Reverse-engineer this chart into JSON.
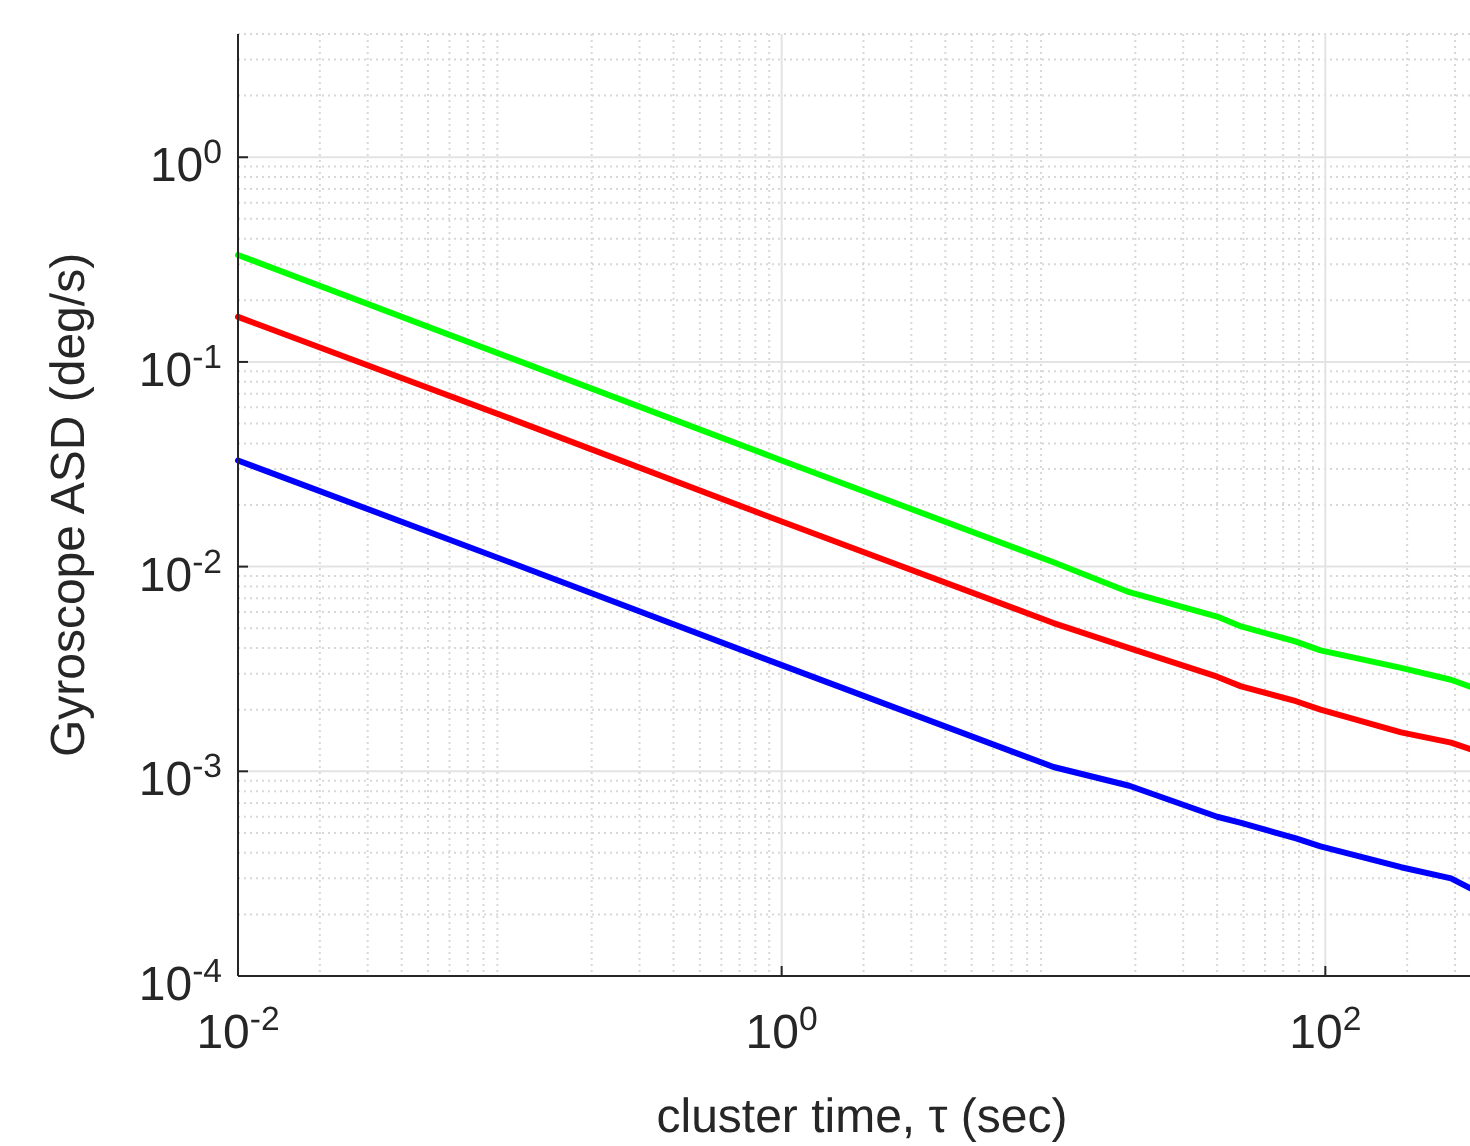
{
  "chart_data": {
    "type": "line",
    "xlabel": "cluster time, τ (sec)",
    "ylabel": "Gyroscope ASD (deg/s)",
    "log": "xy",
    "grid": true,
    "line_style": "solid",
    "marker": "none",
    "xlim": [
      0.01,
      390
    ],
    "xticks": [
      {
        "value": 0.01,
        "label": "10$^{-2}$"
      },
      {
        "value": 1,
        "label": "10$^{0}$"
      },
      {
        "value": 100,
        "label": "10$^{2}$"
      }
    ],
    "ylim": [
      0.0001,
      4
    ],
    "yticks": [
      {
        "value": 0.0001,
        "label": "10$^{-4}$"
      },
      {
        "value": 0.001,
        "label": "10$^{-3}$"
      },
      {
        "value": 0.01,
        "label": "10$^{-2}$"
      },
      {
        "value": 0.1,
        "label": "10$^{-1}$"
      },
      {
        "value": 1,
        "label": "10$^{0}$"
      }
    ],
    "x": [
      0.01,
      0.1,
      1,
      10,
      19,
      40,
      49,
      78,
      96,
      190,
      290,
      390
    ],
    "series": [
      {
        "color": "#00ff00",
        "values": [
          0.333,
          0.105,
          0.033,
          0.0105,
          0.0075,
          0.0057,
          0.0051,
          0.0043,
          0.0039,
          0.0032,
          0.0028,
          0.00243
        ]
      },
      {
        "color": "#ff0000",
        "values": [
          0.166,
          0.053,
          0.0166,
          0.0053,
          0.004,
          0.0029,
          0.0026,
          0.0022,
          0.002,
          0.00155,
          0.00138,
          0.00121
        ]
      },
      {
        "color": "#0000ff",
        "values": [
          0.033,
          0.0105,
          0.0033,
          0.00105,
          0.00085,
          0.0006,
          0.00056,
          0.00047,
          0.00043,
          0.00034,
          0.0003,
          0.000245
        ]
      }
    ]
  }
}
